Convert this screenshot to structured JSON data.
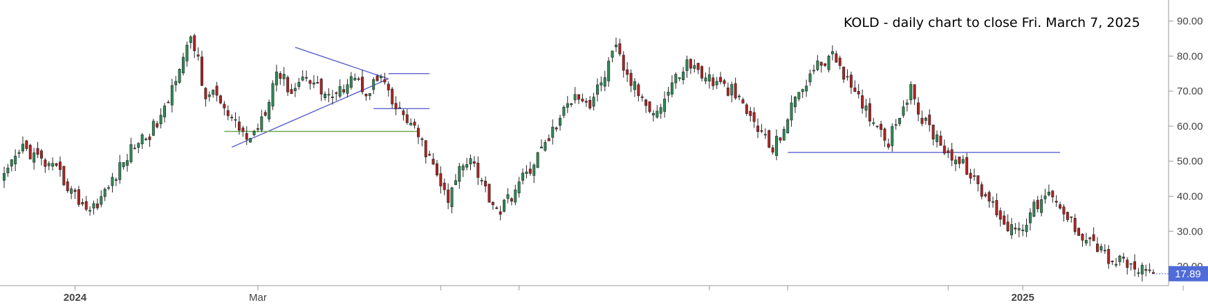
{
  "chart_data": {
    "type": "candlestick",
    "title": "KOLD - daily chart to close Fri. March 7, 2025",
    "ylim": [
      14.5,
      96
    ],
    "y_ticks": [
      "90.00",
      "80.00",
      "70.00",
      "60.00",
      "50.00",
      "40.00",
      "30.00",
      "20.00"
    ],
    "y_tick_values": [
      90,
      80,
      70,
      60,
      50,
      40,
      30,
      20
    ],
    "x_tick_labels": [
      {
        "label": "2024",
        "bold": true,
        "index": 19
      },
      {
        "label": "Mar",
        "bold": false,
        "index": 68
      },
      {
        "label": "2025",
        "bold": true,
        "index": 273
      }
    ],
    "x_minor_tick_indices": [
      117,
      138,
      189,
      210,
      253,
      316
    ],
    "grid": false,
    "last_price": {
      "label": "17.89",
      "value": 17.89
    },
    "colors": {
      "up": "#2e8b57",
      "down": "#b22222",
      "trendline": "#5a5fd0",
      "support": "#6aa84f",
      "last_badge": "#4f6bd8"
    },
    "anchors": [
      [
        0,
        45
      ],
      [
        5,
        54
      ],
      [
        10,
        50
      ],
      [
        15,
        46
      ],
      [
        19,
        40
      ],
      [
        23,
        36
      ],
      [
        27,
        41
      ],
      [
        31,
        48
      ],
      [
        35,
        55
      ],
      [
        39,
        58
      ],
      [
        43,
        64
      ],
      [
        47,
        78
      ],
      [
        50,
        84
      ],
      [
        52,
        80
      ],
      [
        54,
        66
      ],
      [
        56,
        71
      ],
      [
        59,
        64
      ],
      [
        62,
        60
      ],
      [
        66,
        56
      ],
      [
        70,
        65
      ],
      [
        73,
        76
      ],
      [
        77,
        70
      ],
      [
        81,
        75
      ],
      [
        85,
        70
      ],
      [
        89,
        68
      ],
      [
        93,
        75
      ],
      [
        97,
        70
      ],
      [
        101,
        74
      ],
      [
        104,
        66
      ],
      [
        108,
        62
      ],
      [
        112,
        55
      ],
      [
        116,
        46
      ],
      [
        119,
        38
      ],
      [
        122,
        48
      ],
      [
        125,
        52
      ],
      [
        128,
        44
      ],
      [
        131,
        38
      ],
      [
        133,
        36
      ],
      [
        137,
        42
      ],
      [
        141,
        48
      ],
      [
        145,
        55
      ],
      [
        149,
        62
      ],
      [
        153,
        70
      ],
      [
        157,
        66
      ],
      [
        161,
        75
      ],
      [
        164,
        82
      ],
      [
        167,
        74
      ],
      [
        171,
        68
      ],
      [
        175,
        64
      ],
      [
        179,
        72
      ],
      [
        183,
        78
      ],
      [
        187,
        75
      ],
      [
        191,
        72
      ],
      [
        195,
        70
      ],
      [
        199,
        64
      ],
      [
        203,
        58
      ],
      [
        206,
        53
      ],
      [
        209,
        60
      ],
      [
        213,
        70
      ],
      [
        217,
        76
      ],
      [
        221,
        80
      ],
      [
        224,
        78
      ],
      [
        227,
        70
      ],
      [
        230,
        66
      ],
      [
        233,
        62
      ],
      [
        237,
        56
      ],
      [
        240,
        64
      ],
      [
        243,
        70
      ],
      [
        246,
        62
      ],
      [
        249,
        58
      ],
      [
        252,
        54
      ],
      [
        255,
        50
      ],
      [
        258,
        48
      ],
      [
        261,
        42
      ],
      [
        263,
        40
      ],
      [
        266,
        36
      ],
      [
        269,
        31
      ],
      [
        273,
        32
      ],
      [
        277,
        38
      ],
      [
        280,
        40
      ],
      [
        284,
        35
      ],
      [
        288,
        30
      ],
      [
        292,
        27
      ],
      [
        296,
        22
      ],
      [
        300,
        21
      ],
      [
        302,
        20
      ],
      [
        305,
        18.5
      ],
      [
        308,
        17.89
      ]
    ],
    "annotations": [
      {
        "type": "trendline",
        "from": [
          61,
          54
        ],
        "to": [
          103,
          73.5
        ]
      },
      {
        "type": "trendline",
        "from": [
          78,
          82.5
        ],
        "to": [
          103,
          73.5
        ]
      },
      {
        "type": "trendline",
        "from": [
          103,
          75
        ],
        "to": [
          114,
          75
        ]
      },
      {
        "type": "trendline",
        "from": [
          99,
          65
        ],
        "to": [
          114,
          65
        ]
      },
      {
        "type": "support",
        "from": [
          59,
          58.5
        ],
        "to": [
          111,
          58.5
        ]
      },
      {
        "type": "trendline",
        "from": [
          210,
          52.5
        ],
        "to": [
          283,
          52.5
        ]
      }
    ]
  }
}
